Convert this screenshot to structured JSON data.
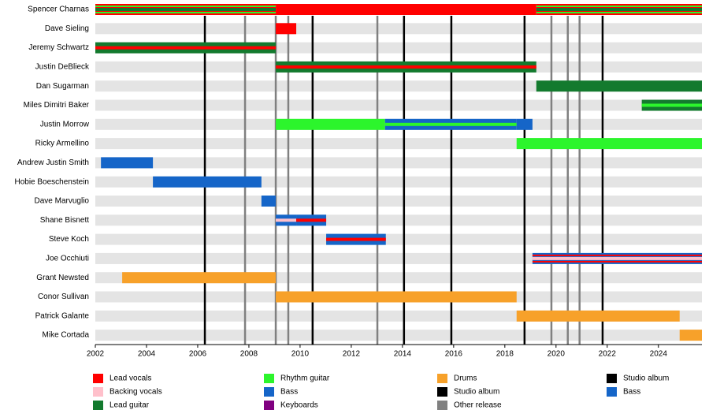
{
  "chart_data": {
    "type": "timeline",
    "xlim": [
      2002,
      2025.7
    ],
    "xticks": [
      2002,
      2004,
      2006,
      2008,
      2010,
      2012,
      2014,
      2016,
      2018,
      2020,
      2022,
      2024
    ],
    "members": [
      {
        "name": "Spencer Charnas",
        "segments": [
          {
            "start": 2002,
            "end": 2009.05,
            "colors": [
              "#ff0000",
              "#137a2e",
              "#2cf52c"
            ]
          },
          {
            "start": 2009.05,
            "end": 2019.23,
            "colors": [
              "#ff0000"
            ]
          },
          {
            "start": 2019.23,
            "end": 2025.7,
            "colors": [
              "#ff0000",
              "#137a2e",
              "#2cf52c"
            ]
          }
        ]
      },
      {
        "name": "Dave Sieling",
        "segments": [
          {
            "start": 2009.05,
            "end": 2009.85,
            "colors": [
              "#ff0000"
            ]
          }
        ]
      },
      {
        "name": "Jeremy Schwartz",
        "segments": [
          {
            "start": 2002,
            "end": 2009.05,
            "colors": [
              "#137a2e",
              "#ff0000"
            ]
          }
        ]
      },
      {
        "name": "Justin DeBlieck",
        "segments": [
          {
            "start": 2009.05,
            "end": 2019.23,
            "colors": [
              "#137a2e",
              "#ff0000"
            ]
          }
        ]
      },
      {
        "name": "Dan Sugarman",
        "segments": [
          {
            "start": 2019.23,
            "end": 2025.7,
            "colors": [
              "#137a2e"
            ]
          }
        ]
      },
      {
        "name": "Miles Dimitri Baker",
        "segments": [
          {
            "start": 2023.35,
            "end": 2025.7,
            "colors": [
              "#137a2e",
              "#2cf52c"
            ]
          }
        ]
      },
      {
        "name": "Justin Morrow",
        "segments": [
          {
            "start": 2009.05,
            "end": 2013.32,
            "colors": [
              "#2cf52c"
            ]
          },
          {
            "start": 2013.32,
            "end": 2018.46,
            "colors": [
              "#1565c8",
              "#2cf52c"
            ]
          },
          {
            "start": 2018.46,
            "end": 2019.08,
            "colors": [
              "#1565c8"
            ]
          }
        ]
      },
      {
        "name": "Ricky Armellino",
        "segments": [
          {
            "start": 2018.46,
            "end": 2025.7,
            "colors": [
              "#2cf52c"
            ]
          }
        ]
      },
      {
        "name": "Andrew Justin Smith",
        "segments": [
          {
            "start": 2002.22,
            "end": 2004.25,
            "colors": [
              "#1565c8"
            ]
          }
        ]
      },
      {
        "name": "Hobie Boeschenstein",
        "segments": [
          {
            "start": 2004.25,
            "end": 2008.49,
            "colors": [
              "#1565c8"
            ]
          }
        ]
      },
      {
        "name": "Dave Marvuglio",
        "segments": [
          {
            "start": 2008.49,
            "end": 2009.05,
            "colors": [
              "#1565c8"
            ]
          }
        ]
      },
      {
        "name": "Shane Bisnett",
        "segments": [
          {
            "start": 2009.05,
            "end": 2009.85,
            "colors": [
              "#1565c8",
              "#ffc0cb"
            ]
          },
          {
            "start": 2009.85,
            "end": 2011.02,
            "colors": [
              "#1565c8",
              "#ff0000"
            ]
          }
        ]
      },
      {
        "name": "Steve Koch",
        "segments": [
          {
            "start": 2011.02,
            "end": 2013.35,
            "colors": [
              "#1565c8",
              "#ff0000"
            ]
          }
        ]
      },
      {
        "name": "Joe Occhiuti",
        "segments": [
          {
            "start": 2019.08,
            "end": 2025.7,
            "colors": [
              "#1565c8",
              "#ffc0cb",
              "#ff0000"
            ]
          }
        ]
      },
      {
        "name": "Grant Newsted",
        "segments": [
          {
            "start": 2003.05,
            "end": 2009.05,
            "colors": [
              "#f7a12a"
            ]
          }
        ]
      },
      {
        "name": "Conor Sullivan",
        "segments": [
          {
            "start": 2009.05,
            "end": 2018.46,
            "colors": [
              "#f7a12a"
            ]
          }
        ]
      },
      {
        "name": "Patrick Galante",
        "segments": [
          {
            "start": 2018.46,
            "end": 2024.83,
            "colors": [
              "#f7a12a"
            ]
          }
        ]
      },
      {
        "name": "Mike Cortada",
        "segments": [
          {
            "start": 2024.83,
            "end": 2025.7,
            "colors": [
              "#f7a12a"
            ]
          }
        ]
      }
    ],
    "releases": [
      {
        "x": 2006.28,
        "color": "#000000"
      },
      {
        "x": 2007.85,
        "color": "#808080"
      },
      {
        "x": 2009.05,
        "color": "#808080"
      },
      {
        "x": 2009.54,
        "color": "#808080"
      },
      {
        "x": 2010.49,
        "color": "#000000"
      },
      {
        "x": 2013.02,
        "color": "#808080"
      },
      {
        "x": 2014.06,
        "color": "#000000"
      },
      {
        "x": 2015.91,
        "color": "#000000"
      },
      {
        "x": 2018.77,
        "color": "#000000"
      },
      {
        "x": 2019.82,
        "color": "#808080"
      },
      {
        "x": 2020.46,
        "color": "#808080"
      },
      {
        "x": 2020.92,
        "color": "#808080"
      },
      {
        "x": 2021.82,
        "color": "#000000"
      }
    ],
    "legend": [
      {
        "label": "Lead vocals",
        "color": "#ff0000"
      },
      {
        "label": "Backing vocals",
        "color": "#ffc0cb"
      },
      {
        "label": "Lead guitar",
        "color": "#137a2e"
      },
      {
        "label": "Rhythm guitar",
        "color": "#2cf52c"
      },
      {
        "label": "Bass",
        "color": "#1565c8"
      },
      {
        "label": "Keyboards",
        "color": "#800080"
      },
      {
        "label": "Drums",
        "color": "#f7a12a"
      },
      {
        "label": "Studio album",
        "color": "#000000"
      },
      {
        "label": "Other release",
        "color": "#808080"
      },
      {
        "label": "Studio album",
        "color": "#000000"
      },
      {
        "label": "Bass",
        "color": "#1565c8"
      }
    ]
  }
}
